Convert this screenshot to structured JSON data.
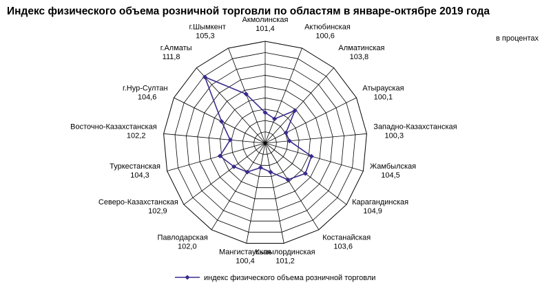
{
  "chart_data": {
    "type": "radar",
    "title": "Индекс физического объема розничной торговли по областям в январе-октябре 2019 года",
    "unit_label": "в процентах",
    "categories": [
      "Акмолинская",
      "Актюбинская",
      "Алматинская",
      "Атырауская",
      "Западно-Казахстанская",
      "Жамбылская",
      "Карагандинская",
      "Костанайская",
      "Кызылординская",
      "Мангистауская",
      "Павлодарская",
      "Северо-Казахстанская",
      "Туркестанская",
      "Восточно-Казахстанская",
      "г.Нур-Султан",
      "г.Алматы",
      "г.Шымкент"
    ],
    "value_labels": [
      "101,4",
      "100,6",
      "103,8",
      "100,1",
      "100,3",
      "104,5",
      "104,9",
      "103,6",
      "101,2",
      "100,4",
      "102,0",
      "102,9",
      "104,3",
      "102,2",
      "104,6",
      "111,8",
      "105,3"
    ],
    "series": [
      {
        "name": "индекс физического объема розничной торговли",
        "color": "#3b2a8c",
        "values": [
          101.4,
          100.6,
          103.8,
          100.1,
          100.3,
          104.5,
          104.9,
          103.6,
          101.2,
          100.4,
          102.0,
          102.9,
          104.3,
          102.2,
          104.6,
          111.8,
          105.3
        ]
      }
    ],
    "rlim": [
      96,
      114
    ],
    "grid_rings": 9,
    "grid": true,
    "legend_position": "bottom"
  }
}
